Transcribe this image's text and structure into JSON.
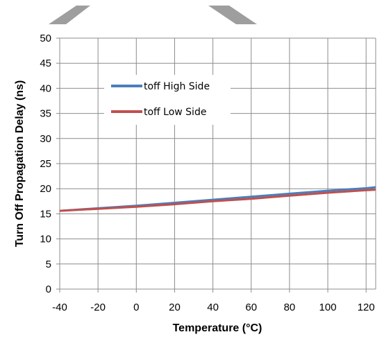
{
  "chart_data": {
    "type": "line",
    "title": "",
    "xlabel": "Temperature (°C)",
    "ylabel": "Turn Off Propagation Delay (ns)",
    "xlim": [
      -40,
      125
    ],
    "ylim": [
      0,
      50
    ],
    "xticks": [
      -40,
      -20,
      0,
      20,
      40,
      60,
      80,
      100,
      120
    ],
    "yticks": [
      0,
      5,
      10,
      15,
      20,
      25,
      30,
      35,
      40,
      45,
      50
    ],
    "grid": true,
    "legend_position": "upper-left inside plot",
    "series": [
      {
        "name": "toff High Side",
        "color": "#4a7ebb",
        "x": [
          -40,
          -20,
          0,
          20,
          40,
          60,
          80,
          100,
          120,
          125
        ],
        "y": [
          15.6,
          16.1,
          16.6,
          17.2,
          17.8,
          18.4,
          19.0,
          19.6,
          20.1,
          20.3
        ]
      },
      {
        "name": "toff Low Side",
        "color": "#c0504d",
        "x": [
          -40,
          -20,
          0,
          20,
          40,
          60,
          80,
          100,
          120,
          125
        ],
        "y": [
          15.6,
          16.0,
          16.4,
          16.9,
          17.5,
          18.0,
          18.6,
          19.2,
          19.7,
          19.8
        ]
      }
    ]
  }
}
